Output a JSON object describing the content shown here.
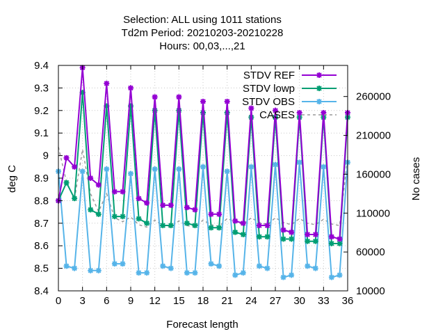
{
  "chart_data": {
    "type": "line",
    "title_lines": [
      "Selection: ALL using  1011 stations",
      "Td2m   Period: 20210203-20210228",
      "Hours: 00,03,...,21"
    ],
    "xlabel": "Forecast length",
    "ylabel": "deg C",
    "y2label": "No cases",
    "xlim": [
      0,
      36
    ],
    "ylim": [
      8.4,
      9.4
    ],
    "y2lim": [
      10000,
      300000
    ],
    "xticks": [
      "0",
      "3",
      "6",
      "9",
      "12",
      "15",
      "18",
      "21",
      "24",
      "27",
      "30",
      "33",
      "36"
    ],
    "yticks": [
      "8.4",
      "8.5",
      "8.6",
      "8.7",
      "8.8",
      "8.9",
      "9",
      "9.1",
      "9.2",
      "9.3",
      "9.4"
    ],
    "y2ticks": [
      "10000",
      "60000",
      "110000",
      "160000",
      "210000",
      "260000"
    ],
    "legend_position": "top-right",
    "x": [
      0,
      1,
      2,
      3,
      4,
      5,
      6,
      7,
      8,
      9,
      10,
      11,
      12,
      13,
      14,
      15,
      16,
      17,
      18,
      19,
      20,
      21,
      22,
      23,
      24,
      25,
      26,
      27,
      28,
      29,
      30,
      31,
      32,
      33,
      34,
      35,
      36
    ],
    "series": [
      {
        "name": "STDV REF",
        "axis": "y",
        "color": "#9400d3",
        "values": [
          8.8,
          8.99,
          8.95,
          9.39,
          8.9,
          8.87,
          9.32,
          8.84,
          8.84,
          9.3,
          8.81,
          8.79,
          9.26,
          8.78,
          8.78,
          9.26,
          8.77,
          8.76,
          9.24,
          8.74,
          8.74,
          9.24,
          8.71,
          8.7,
          9.21,
          8.69,
          8.69,
          9.2,
          8.67,
          8.66,
          9.19,
          8.65,
          8.65,
          9.19,
          8.64,
          8.63,
          9.19
        ]
      },
      {
        "name": "STDV lowp",
        "axis": "y",
        "color": "#009e73",
        "values": [
          8.8,
          8.88,
          8.81,
          9.28,
          8.76,
          8.74,
          9.22,
          8.73,
          8.73,
          9.22,
          8.72,
          8.7,
          9.2,
          8.69,
          8.69,
          9.2,
          8.7,
          8.69,
          9.19,
          8.68,
          8.68,
          9.19,
          8.66,
          8.65,
          9.17,
          8.64,
          8.64,
          9.17,
          8.63,
          8.63,
          9.17,
          8.62,
          8.62,
          9.17,
          8.61,
          8.61,
          9.17
        ]
      },
      {
        "name": "STDV OBS",
        "axis": "y",
        "color": "#56b4e9",
        "values": [
          8.93,
          8.51,
          8.5,
          8.93,
          8.49,
          8.49,
          8.94,
          8.52,
          8.52,
          8.92,
          8.48,
          8.48,
          8.94,
          8.51,
          8.5,
          8.94,
          8.48,
          8.48,
          8.95,
          8.52,
          8.51,
          8.93,
          8.47,
          8.48,
          8.95,
          8.51,
          8.5,
          8.96,
          8.46,
          8.47,
          8.97,
          8.51,
          8.5,
          8.95,
          8.46,
          8.47,
          8.97
        ]
      },
      {
        "name": "CASES",
        "axis": "y2",
        "color": "#999999",
        "dashed": true,
        "values": [
          195000,
          150000,
          128000,
          192000,
          135000,
          112000,
          135000,
          104000,
          99000,
          105000,
          95000,
          92000,
          101000,
          94000,
          92000,
          100000,
          94000,
          92000,
          101000,
          95000,
          93000,
          103000,
          99000,
          95000,
          104000,
          98000,
          95000,
          104000,
          98000,
          95000,
          103000,
          97000,
          95000,
          102000,
          96000,
          94000,
          182000
        ]
      }
    ]
  }
}
